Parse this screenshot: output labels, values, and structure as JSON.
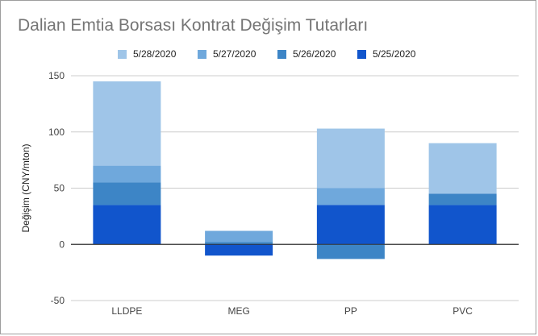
{
  "chart_data": {
    "type": "bar",
    "stacked": true,
    "title": "Dalian Emtia Borsası Kontrat Değişim Tutarları",
    "xlabel": "",
    "ylabel": "Değişim (CNY/mton)",
    "categories": [
      "LLDPE",
      "MEG",
      "PP",
      "PVC"
    ],
    "yticks": [
      -50,
      0,
      50,
      100,
      150
    ],
    "ylim": [
      -50,
      150
    ],
    "grid": true,
    "legend_position": "top",
    "series": [
      {
        "name": "5/25/2020",
        "color": "#1155cc",
        "values": [
          35,
          -10,
          35,
          35
        ]
      },
      {
        "name": "5/26/2020",
        "color": "#3d85c6",
        "values": [
          20,
          2,
          -13,
          10
        ]
      },
      {
        "name": "5/27/2020",
        "color": "#6fa8dc",
        "values": [
          15,
          10,
          15,
          0
        ]
      },
      {
        "name": "5/28/2020",
        "color": "#9fc5e8",
        "values": [
          75,
          0,
          53,
          45
        ]
      }
    ],
    "legend_order": [
      "5/28/2020",
      "5/27/2020",
      "5/26/2020",
      "5/25/2020"
    ]
  }
}
